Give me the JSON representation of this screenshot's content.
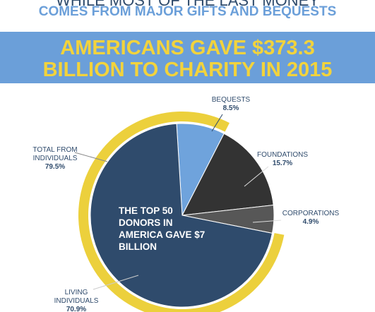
{
  "header": {
    "line1": "WHILE MOST OF THE LAST MONEY",
    "line2": "COMES FROM MAJOR GIFTS AND BEQUESTS"
  },
  "banner": {
    "line1": "AMERICANS GAVE $373.3",
    "line2": "BILLION TO CHARITY IN 2015"
  },
  "chart_data": {
    "type": "pie",
    "categories": [
      "BEQUESTS",
      "FOUNDATIONS",
      "CORPORATIONS",
      "LIVING INDIVIDUALS"
    ],
    "values": [
      8.5,
      15.7,
      4.9,
      70.9
    ],
    "value_labels": [
      "8.5%",
      "15.7%",
      "4.9%",
      "70.9%"
    ],
    "colors": [
      "#6fa3dc",
      "#333333",
      "#575757",
      "#2f4b6c"
    ],
    "ring": {
      "name": "TOTAL FROM INDIVIDUALS",
      "value": 79.5,
      "value_label": "79.5%",
      "color": "#ecd03c"
    },
    "annotation": "THE TOP 50 DONORS IN AMERICA GAVE $7 BILLION"
  }
}
